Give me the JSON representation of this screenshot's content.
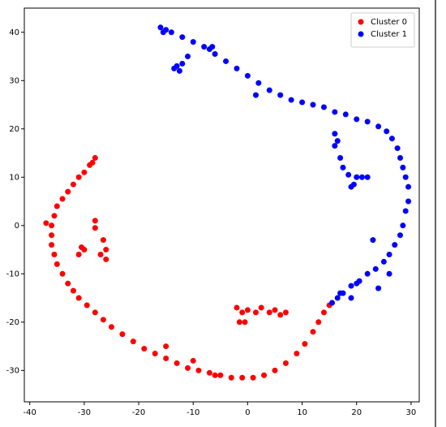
{
  "chart_data": {
    "type": "scatter",
    "xlim": [
      -41,
      31.5
    ],
    "ylim": [
      -36.5,
      45
    ],
    "xticks": [
      -40,
      -30,
      -20,
      -10,
      0,
      10,
      20,
      30
    ],
    "yticks": [
      -30,
      -20,
      -10,
      0,
      10,
      20,
      30,
      40
    ],
    "legend": "upper right",
    "series": [
      {
        "name": "Cluster 0",
        "color": "#ff0000",
        "x": [
          -28,
          -28.5,
          -29,
          -30,
          -31,
          -32,
          -33,
          -34,
          -35,
          -35.5,
          -36,
          -37,
          -36,
          -36,
          -35.5,
          -35,
          -34,
          -33,
          -32,
          -31,
          -29.5,
          -28,
          -26.5,
          -25,
          -23,
          -21,
          -19,
          -17,
          -15,
          -13,
          -11,
          -9,
          -7,
          -5,
          -3,
          -1,
          1,
          3,
          5,
          7,
          9,
          10.5,
          12,
          13,
          14,
          15,
          -28,
          -28,
          -26.5,
          -26,
          -27,
          -26,
          -30.5,
          -31,
          -30,
          -2,
          -1,
          0,
          1.5,
          2.5,
          4,
          5,
          6,
          7,
          -1.5,
          -0.5,
          -6,
          -15,
          -10
        ],
        "values": [
          14,
          13,
          12.5,
          11,
          10,
          8.5,
          7,
          5.5,
          4,
          2,
          0,
          0.5,
          -2,
          -4,
          -6,
          -8,
          -10,
          -12,
          -13.5,
          -15,
          -16.5,
          -18,
          -19.5,
          -21,
          -22.5,
          -24,
          -25.5,
          -26.5,
          -27.5,
          -28.5,
          -29.5,
          -30,
          -30.5,
          -31,
          -31.5,
          -31.5,
          -31.5,
          -31,
          -30,
          -28.5,
          -26.5,
          -24.5,
          -22,
          -20,
          -18,
          -16.5,
          1,
          -0.5,
          -3,
          -5,
          -6,
          -7,
          -4.5,
          -6,
          -5,
          -17,
          -18,
          -17.5,
          -18,
          -17,
          -18,
          -17.5,
          -18.5,
          -18,
          -20,
          -20,
          -31,
          -25,
          -28
        ]
      },
      {
        "name": "Cluster 1",
        "color": "#0000ff",
        "x": [
          -16,
          -15.5,
          -15,
          -14,
          -12,
          -10,
          -8,
          -6,
          -4,
          -2,
          0,
          2,
          4,
          6,
          8,
          10,
          12,
          14,
          16,
          18,
          20,
          22,
          24,
          25.5,
          26.5,
          27.5,
          28,
          28.5,
          29,
          29.5,
          29.5,
          29,
          28.5,
          28,
          27,
          26,
          25,
          23.5,
          22,
          20.5,
          19,
          17.5,
          16.5,
          15.5,
          -13,
          -12.5,
          -13.5,
          -12,
          -11,
          -7,
          -6.5,
          1.5,
          16,
          16.5,
          16,
          17,
          17.5,
          18.5,
          20,
          21,
          22,
          19.5,
          19,
          17,
          19,
          20,
          24,
          26,
          23
        ],
        "values": [
          41,
          40,
          40.5,
          40,
          39,
          38,
          37,
          35.5,
          34,
          32.5,
          31,
          29.5,
          28,
          27,
          26,
          25.5,
          25,
          24.5,
          23.5,
          23,
          22,
          21.5,
          20.5,
          19.5,
          18,
          16,
          14,
          12,
          10,
          8,
          5,
          3,
          0,
          -2,
          -4,
          -6,
          -7.5,
          -9,
          -10,
          -11.5,
          -12.5,
          -14,
          -15,
          -16,
          33,
          32,
          32.5,
          33.5,
          35,
          36.5,
          37,
          27,
          19,
          17.5,
          16.5,
          14,
          12,
          10.5,
          10,
          10,
          10,
          8.5,
          8,
          -14,
          -15,
          -12,
          -13,
          -10,
          -3
        ]
      }
    ]
  }
}
